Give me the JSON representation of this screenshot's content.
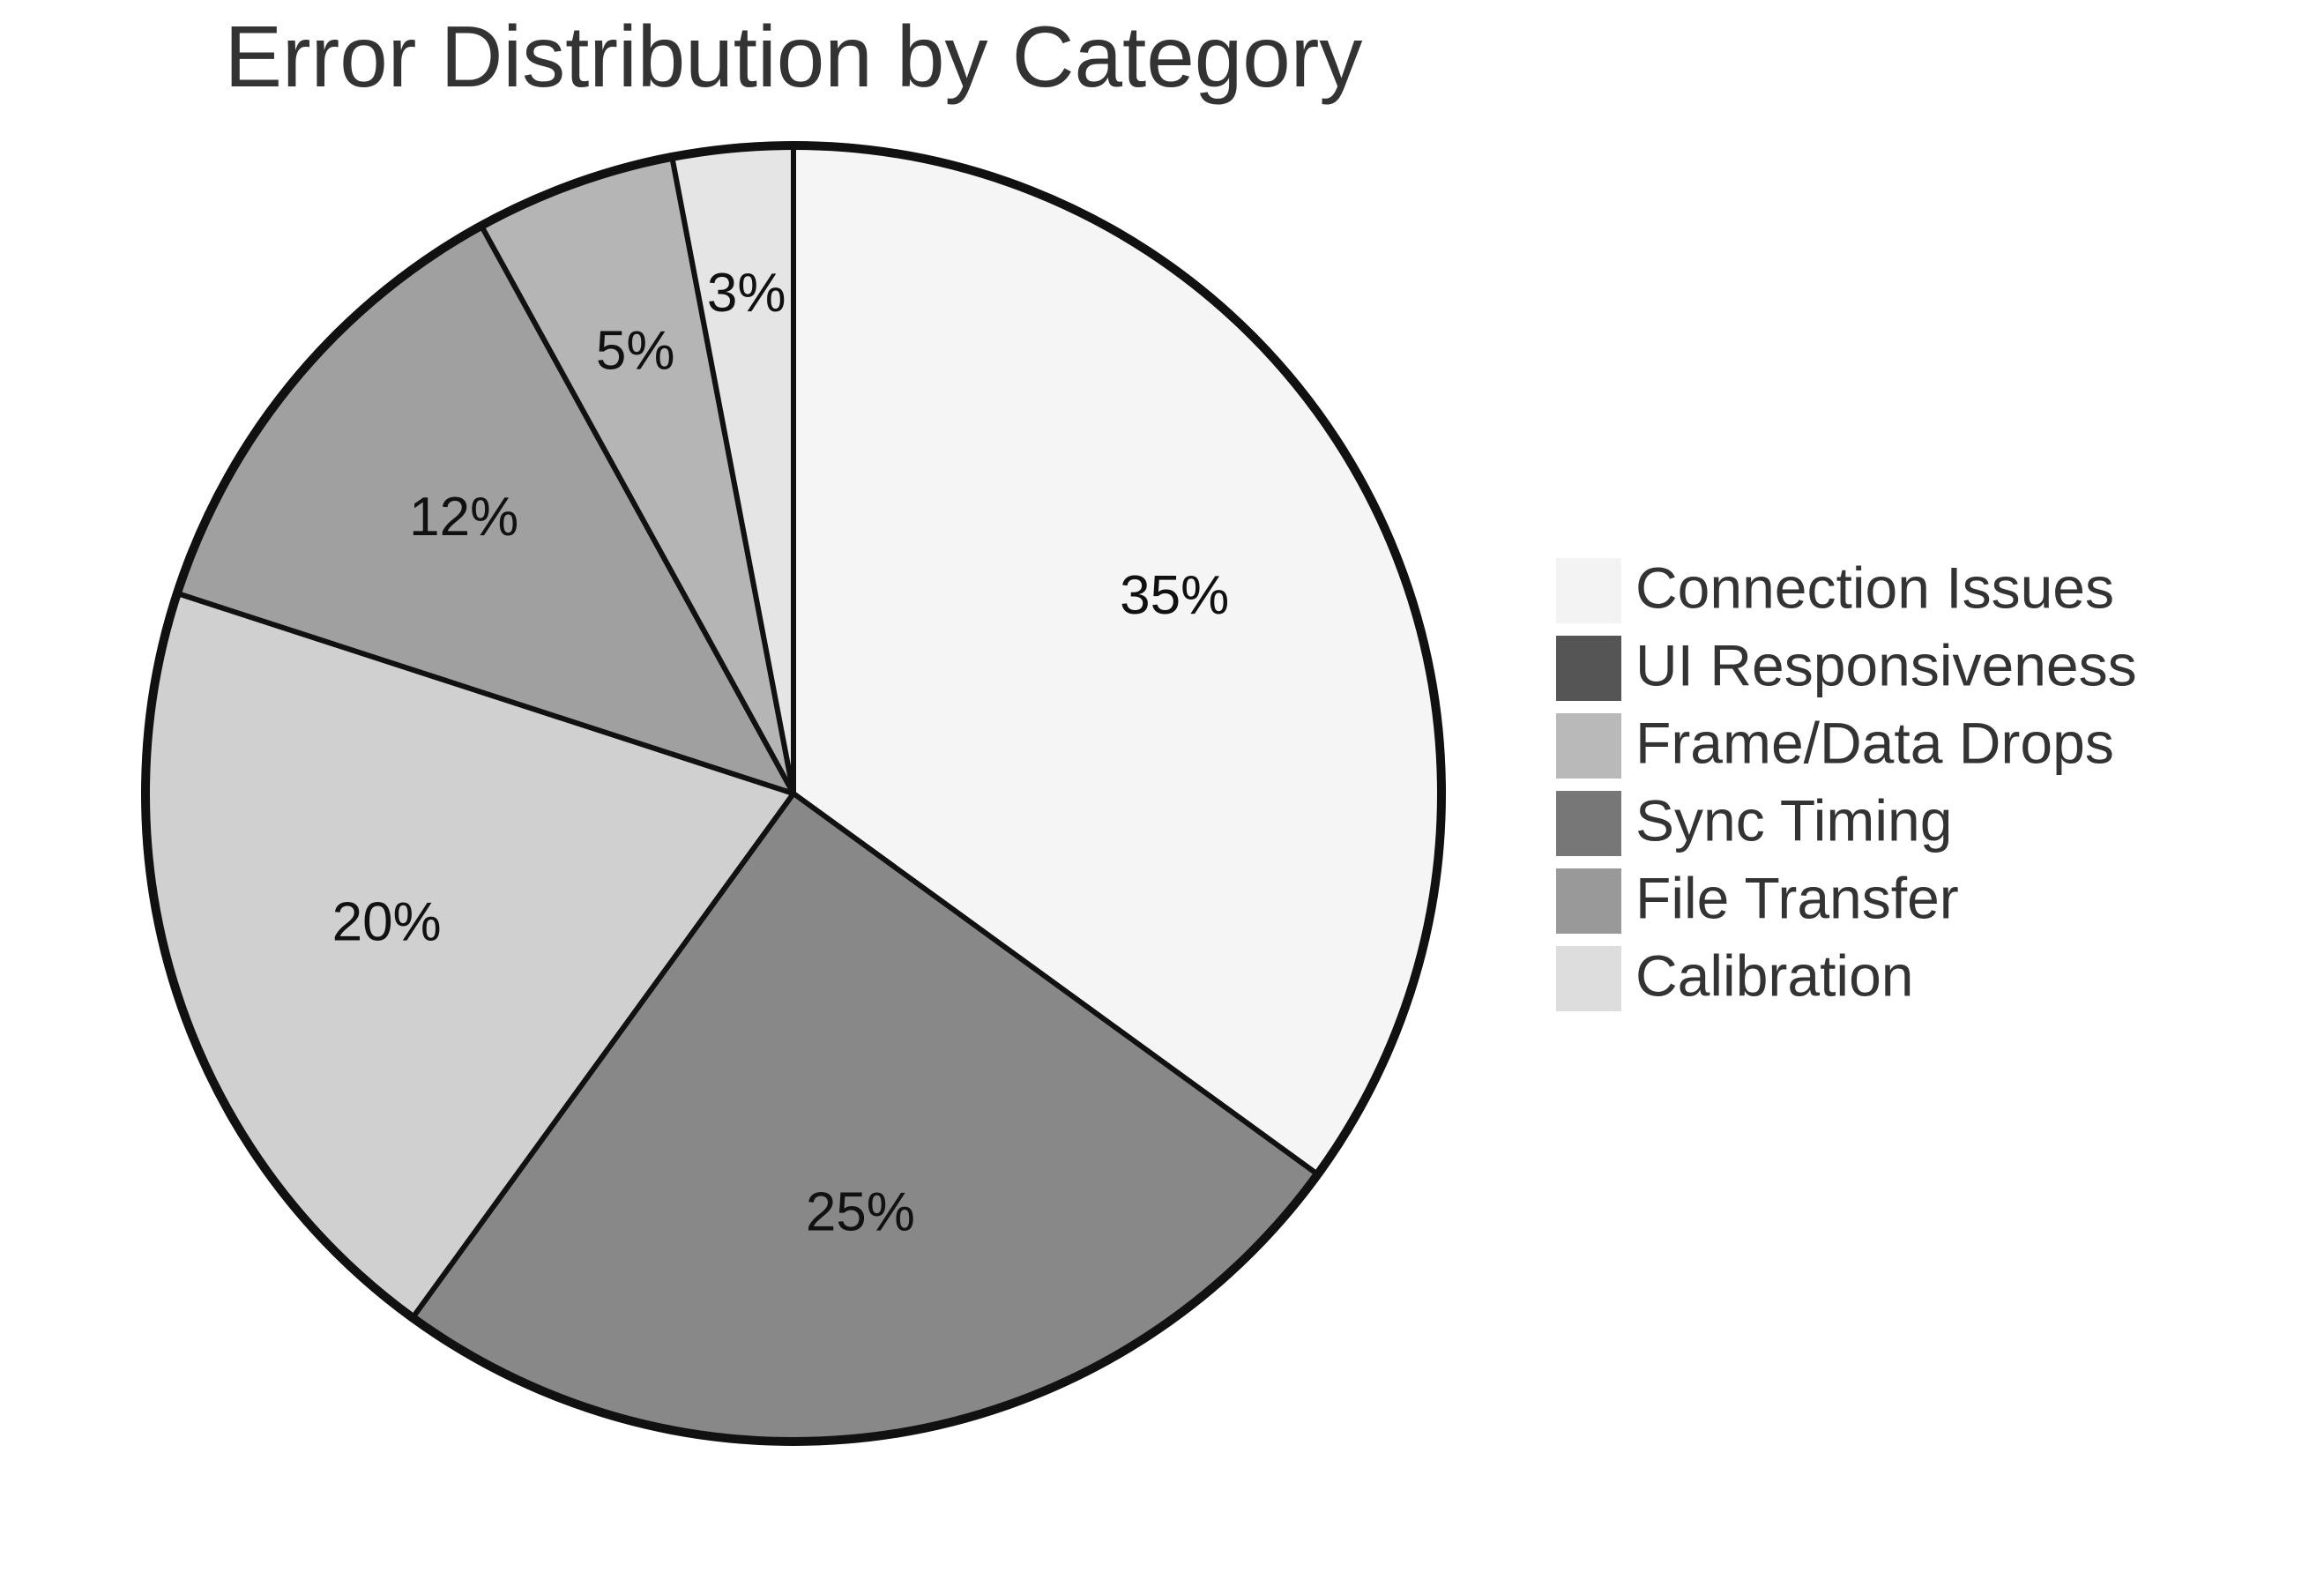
{
  "chart_data": {
    "type": "pie",
    "title": "Error Distribution by Category",
    "direction": "clockwise",
    "start_angle": "12 o'clock",
    "slices": [
      {
        "label": "Connection Issues",
        "value": 35,
        "display": "35%",
        "color": "#f5f5f5"
      },
      {
        "label": "Sync Timing",
        "value": 25,
        "display": "25%",
        "color": "#888888"
      },
      {
        "label": "Frame/Data Drops",
        "value": 20,
        "display": "20%",
        "color": "#d0d0d0"
      },
      {
        "label": "File Transfer",
        "value": 12,
        "display": "12%",
        "color": "#a0a0a0"
      },
      {
        "label": "UI Responsiveness",
        "value": 5,
        "display": "5%",
        "color": "#b5b5b5"
      },
      {
        "label": "Calibration",
        "value": 3,
        "display": "3%",
        "color": "#e5e5e5"
      }
    ],
    "legend": {
      "position": "right",
      "entries": [
        {
          "label": "Connection Issues",
          "color": "#f3f3f3"
        },
        {
          "label": "UI Responsiveness",
          "color": "#555555"
        },
        {
          "label": "Frame/Data Drops",
          "color": "#b9b9b9"
        },
        {
          "label": "Sync Timing",
          "color": "#777777"
        },
        {
          "label": "File Transfer",
          "color": "#999999"
        },
        {
          "label": "Calibration",
          "color": "#dddddd"
        }
      ]
    },
    "stroke_color": "#111111"
  }
}
